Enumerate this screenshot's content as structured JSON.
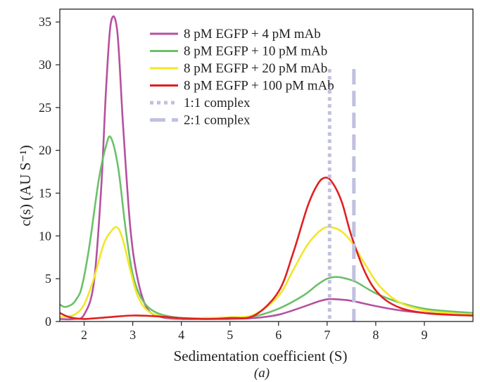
{
  "chart_data": {
    "type": "line",
    "xlabel": "Sedimentation coefficient (S)",
    "ylabel": "c(s) (AU S⁻¹)",
    "caption": "(a)",
    "xlim": [
      1.5,
      10
    ],
    "ylim": [
      0,
      36.5
    ],
    "xticks": [
      2,
      3,
      4,
      5,
      6,
      7,
      8,
      9
    ],
    "yticks": [
      0,
      5,
      10,
      15,
      20,
      25,
      30,
      35
    ],
    "grid": false,
    "legend_position": "top-right",
    "series": [
      {
        "name": "8 pM EGFP + 4 pM mAb",
        "color": "#b5519f",
        "x": [
          1.5,
          1.8,
          2.0,
          2.2,
          2.35,
          2.45,
          2.55,
          2.68,
          2.8,
          2.95,
          3.1,
          3.3,
          3.6,
          4.0,
          4.5,
          5.0,
          5.5,
          6.0,
          6.5,
          6.8,
          7.0,
          7.2,
          7.4,
          7.6,
          8.0,
          8.5,
          9.0,
          9.5,
          10.0
        ],
        "y": [
          0.3,
          0.3,
          0.8,
          4.5,
          15.5,
          27.0,
          34.9,
          34.0,
          23.0,
          11.0,
          5.0,
          1.5,
          0.5,
          0.3,
          0.3,
          0.3,
          0.4,
          0.8,
          1.7,
          2.3,
          2.6,
          2.6,
          2.5,
          2.3,
          1.8,
          1.3,
          1.0,
          0.8,
          0.7
        ]
      },
      {
        "name": "8 pM EGFP + 10 pM mAb",
        "color": "#6cc06a",
        "x": [
          1.5,
          1.6,
          1.75,
          1.85,
          1.95,
          2.1,
          2.3,
          2.45,
          2.55,
          2.7,
          2.85,
          3.0,
          3.2,
          3.5,
          4.0,
          4.5,
          5.0,
          5.5,
          6.0,
          6.5,
          6.8,
          7.0,
          7.2,
          7.4,
          7.6,
          8.0,
          8.5,
          9.0,
          9.5,
          10.0
        ],
        "y": [
          2.0,
          1.7,
          2.0,
          2.7,
          4.0,
          8.5,
          16.5,
          20.5,
          21.5,
          18.0,
          11.0,
          5.5,
          2.5,
          1.0,
          0.4,
          0.4,
          0.4,
          0.6,
          1.5,
          3.0,
          4.3,
          5.0,
          5.2,
          5.0,
          4.6,
          3.3,
          2.2,
          1.5,
          1.2,
          1.0
        ]
      },
      {
        "name": "8 pM EGFP + 20 pM mAb",
        "color": "#f2e629",
        "x": [
          1.5,
          1.8,
          2.0,
          2.2,
          2.4,
          2.55,
          2.68,
          2.8,
          2.95,
          3.1,
          3.3,
          3.6,
          4.0,
          4.5,
          5.0,
          5.5,
          6.0,
          6.3,
          6.6,
          6.9,
          7.1,
          7.3,
          7.5,
          7.8,
          8.1,
          8.5,
          9.0,
          9.5,
          10.0
        ],
        "y": [
          0.5,
          0.8,
          2.0,
          5.0,
          9.0,
          10.5,
          11.0,
          9.5,
          6.0,
          3.0,
          1.3,
          0.6,
          0.4,
          0.4,
          0.5,
          0.8,
          3.0,
          6.0,
          9.0,
          10.8,
          11.0,
          10.5,
          9.3,
          6.5,
          4.0,
          2.2,
          1.3,
          1.0,
          0.8
        ]
      },
      {
        "name": "8 pM EGFP + 100 pM mAb",
        "color": "#e02020",
        "x": [
          1.5,
          1.7,
          2.0,
          2.5,
          3.0,
          3.5,
          4.0,
          4.5,
          5.0,
          5.5,
          6.0,
          6.3,
          6.6,
          6.8,
          6.95,
          7.1,
          7.3,
          7.5,
          7.8,
          8.1,
          8.5,
          9.0,
          9.5,
          10.0
        ],
        "y": [
          1.0,
          0.5,
          0.3,
          0.5,
          0.7,
          0.6,
          0.4,
          0.3,
          0.4,
          0.7,
          3.5,
          8.0,
          13.5,
          16.0,
          16.8,
          16.3,
          14.0,
          10.0,
          5.5,
          3.0,
          1.6,
          1.0,
          0.8,
          0.7
        ]
      }
    ],
    "reference_lines": [
      {
        "name": "1:1 complex",
        "x": 7.05,
        "style": "dotted",
        "color": "#c0c0e0",
        "y_top": 29.5
      },
      {
        "name": "2:1 complex",
        "x": 7.55,
        "style": "dashed",
        "color": "#c0c0e0",
        "y_top": 29.5
      }
    ]
  }
}
